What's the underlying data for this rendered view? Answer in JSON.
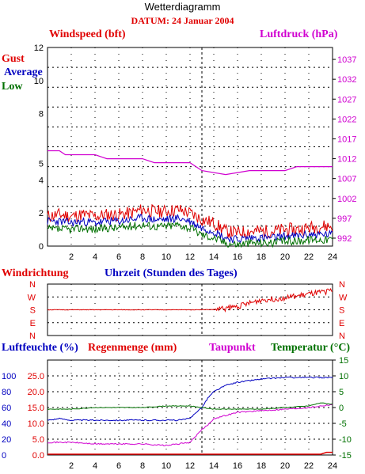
{
  "title": "Wetterdiagramm",
  "date_label": "DATUM: 24 Januar 2004",
  "colors": {
    "red": "#e00000",
    "blue": "#0000c0",
    "green": "#007000",
    "magenta": "#d000d0",
    "grid": "#000000"
  },
  "chart_data": [
    {
      "type": "line",
      "panel": "wind",
      "labels": {
        "left_title": "Windspeed (bft)",
        "right_title": "Luftdruck (hPa)"
      },
      "legend": [
        "Gust",
        "Average",
        "Low"
      ],
      "x_ticks": [
        "2",
        "4",
        "6",
        "8",
        "10",
        "12",
        "14",
        "16",
        "18",
        "20",
        "22",
        "24"
      ],
      "xlim": [
        0,
        24
      ],
      "y_left_ticks": [
        "0",
        "2",
        "4",
        "5",
        "8",
        "10",
        "12"
      ],
      "y_left_values": [
        0,
        2,
        4,
        5,
        8,
        10,
        12
      ],
      "ylim_left": [
        0,
        12
      ],
      "y_right_ticks": [
        "992",
        "997",
        "1002",
        "1007",
        "1012",
        "1017",
        "1022",
        "1027",
        "1032",
        "1037"
      ],
      "ylim_right": [
        990,
        1040
      ],
      "series": [
        {
          "name": "Gust",
          "axis": "left",
          "color": "red",
          "x": [
            0,
            1,
            2,
            3,
            4,
            5,
            6,
            7,
            8,
            9,
            10,
            11,
            12,
            13,
            14,
            15,
            16,
            17,
            18,
            19,
            20,
            21,
            22,
            23,
            24
          ],
          "y": [
            1.8,
            1.9,
            1.8,
            1.9,
            1.8,
            1.9,
            1.9,
            2.0,
            2.2,
            2.1,
            2.1,
            2.2,
            2.0,
            1.6,
            1.4,
            0.9,
            0.8,
            0.9,
            0.9,
            0.9,
            1.0,
            1.0,
            1.1,
            1.2,
            1.2
          ]
        },
        {
          "name": "Average",
          "axis": "left",
          "color": "blue",
          "x": [
            0,
            1,
            2,
            3,
            4,
            5,
            6,
            7,
            8,
            9,
            10,
            11,
            12,
            13,
            14,
            15,
            16,
            17,
            18,
            19,
            20,
            21,
            22,
            23,
            24
          ],
          "y": [
            1.5,
            1.5,
            1.4,
            1.5,
            1.4,
            1.5,
            1.5,
            1.6,
            1.7,
            1.6,
            1.6,
            1.7,
            1.5,
            1.1,
            0.9,
            0.5,
            0.4,
            0.5,
            0.5,
            0.5,
            0.6,
            0.6,
            0.7,
            0.7,
            0.7
          ]
        },
        {
          "name": "Low",
          "axis": "left",
          "color": "green",
          "x": [
            0,
            1,
            2,
            3,
            4,
            5,
            6,
            7,
            8,
            9,
            10,
            11,
            12,
            13,
            14,
            15,
            16,
            17,
            18,
            19,
            20,
            21,
            22,
            23,
            24
          ],
          "y": [
            1.0,
            1.0,
            1.0,
            1.1,
            1.0,
            1.1,
            1.1,
            1.2,
            1.3,
            1.2,
            1.2,
            1.3,
            1.1,
            0.7,
            0.5,
            0.2,
            0.1,
            0.2,
            0.2,
            0.2,
            0.3,
            0.3,
            0.4,
            0.4,
            0.4
          ]
        },
        {
          "name": "Luftdruck",
          "axis": "right",
          "color": "magenta",
          "x": [
            0,
            1,
            1.5,
            4,
            5,
            8,
            9,
            12,
            13,
            15,
            17,
            20,
            21,
            24
          ],
          "y": [
            1014,
            1014,
            1013,
            1013,
            1012,
            1012,
            1011,
            1011,
            1009,
            1008,
            1009,
            1009,
            1010,
            1010
          ]
        }
      ]
    },
    {
      "type": "line",
      "panel": "direction",
      "labels": {
        "left_title": "Windrichtung",
        "center_title": "Uhrzeit (Stunden des Tages)"
      },
      "dir_ticks": [
        "N",
        "W",
        "S",
        "E",
        "N"
      ],
      "dir_values": [
        360,
        270,
        180,
        90,
        0
      ],
      "xlim": [
        0,
        24
      ],
      "series": [
        {
          "name": "Windrichtung",
          "color": "red",
          "x": [
            0,
            3,
            6,
            9,
            12,
            14,
            15,
            16,
            17,
            18,
            19,
            20,
            21,
            22,
            23,
            24
          ],
          "y": [
            180,
            180,
            180,
            180,
            180,
            182,
            190,
            205,
            225,
            250,
            255,
            265,
            275,
            290,
            300,
            315
          ]
        }
      ]
    },
    {
      "type": "line",
      "panel": "humidity",
      "labels": {
        "left_title": "Luftfeuchte (%)",
        "rain_title": "Regenmenge (mm)",
        "dew_title": "Taupunkt",
        "temp_title": "Temperatur (°C)"
      },
      "x_ticks": [
        "2",
        "4",
        "6",
        "8",
        "10",
        "12",
        "14",
        "16",
        "18",
        "20",
        "22",
        "24"
      ],
      "xlim": [
        0,
        24
      ],
      "y_hum_ticks": [
        "0",
        "20",
        "40",
        "60",
        "80",
        "100"
      ],
      "y_hum_values": [
        0,
        20,
        40,
        60,
        80,
        100
      ],
      "y_rain_ticks": [
        "0.0",
        "5.0",
        "10.0",
        "15.0",
        "20.0",
        "25.0"
      ],
      "y_rain_values": [
        0,
        5,
        10,
        15,
        20,
        25
      ],
      "ylim_rain": [
        0,
        30
      ],
      "y_temp_ticks": [
        "-15",
        "-10",
        "-5",
        "0",
        "5",
        "10",
        "15"
      ],
      "ylim_temp": [
        -15,
        15
      ],
      "series": [
        {
          "name": "Luftfeuchte",
          "color": "blue",
          "x": [
            0,
            1,
            2,
            4,
            6,
            8,
            10,
            11,
            12,
            12.5,
            13,
            13.5,
            14,
            15,
            16,
            18,
            20,
            22,
            24
          ],
          "y": [
            -4,
            -3.5,
            -4,
            -4,
            -4,
            -4,
            -4,
            -4,
            -3.5,
            -1.5,
            0,
            3,
            5,
            7,
            8,
            9,
            9.5,
            9.5,
            9.5
          ]
        },
        {
          "name": "Taupunkt",
          "color": "magenta",
          "x": [
            0,
            2,
            4,
            6,
            8,
            10,
            11,
            12,
            12.5,
            13,
            13.5,
            14,
            16,
            18,
            20,
            22,
            24
          ],
          "y": [
            -11,
            -11,
            -11.5,
            -11.5,
            -11.5,
            -12,
            -11.5,
            -11,
            -9,
            -7,
            -5.5,
            -3.5,
            -1.5,
            -1,
            -0.5,
            0,
            1
          ]
        },
        {
          "name": "Temperatur",
          "color": "green",
          "x": [
            0,
            2,
            4,
            6,
            8,
            10,
            12,
            13,
            14,
            16,
            18,
            20,
            22,
            23,
            24
          ],
          "y": [
            -0.5,
            -0.5,
            0,
            0,
            0,
            0.5,
            0.5,
            0,
            -0.5,
            -0.5,
            -0.5,
            0,
            0.5,
            1.5,
            1
          ]
        },
        {
          "name": "Regenmenge",
          "color": "red",
          "x": [
            0,
            23,
            23.5,
            24
          ],
          "y": [
            0,
            0,
            0.3,
            0.3
          ]
        }
      ]
    }
  ]
}
